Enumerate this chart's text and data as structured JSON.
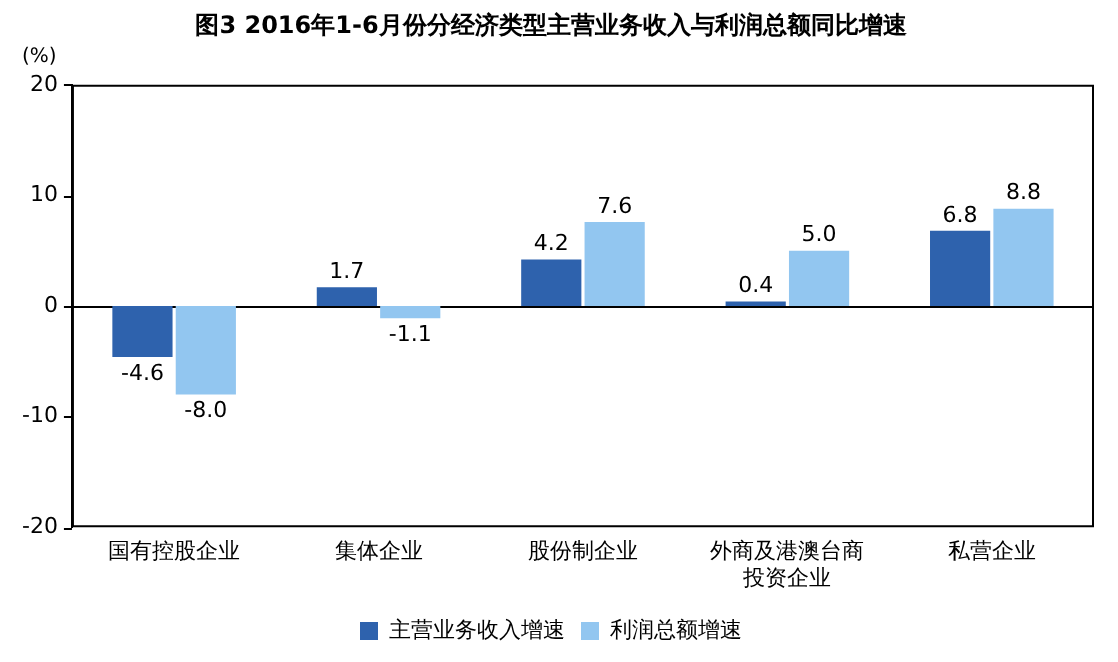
{
  "chart_data": {
    "type": "bar",
    "title": "图3 2016年1-6月份分经济类型主营业务收入与利润总额同比增速",
    "ylabel": "(%)",
    "categories": [
      "国有控股企业",
      "集体企业",
      "股份制企业",
      "外商及港澳台商投资企业",
      "私营企业"
    ],
    "series": [
      {
        "name": "主营业务收入增速",
        "color": "#2e62ad",
        "values": [
          -4.6,
          1.7,
          4.2,
          0.4,
          6.8
        ],
        "value_labels": [
          "-4.6",
          "1.7",
          "4.2",
          "0.4",
          "6.8"
        ]
      },
      {
        "name": "利润总额增速",
        "color": "#92c6f0",
        "values": [
          -8.0,
          -1.1,
          7.6,
          5.0,
          8.8
        ],
        "value_labels": [
          "-8.0",
          "-1.1",
          "7.6",
          "5.0",
          "8.8"
        ]
      }
    ],
    "ylim": [
      -20,
      20
    ],
    "yticks": [
      -20,
      -10,
      0,
      10,
      20
    ],
    "legend": "bottom"
  }
}
